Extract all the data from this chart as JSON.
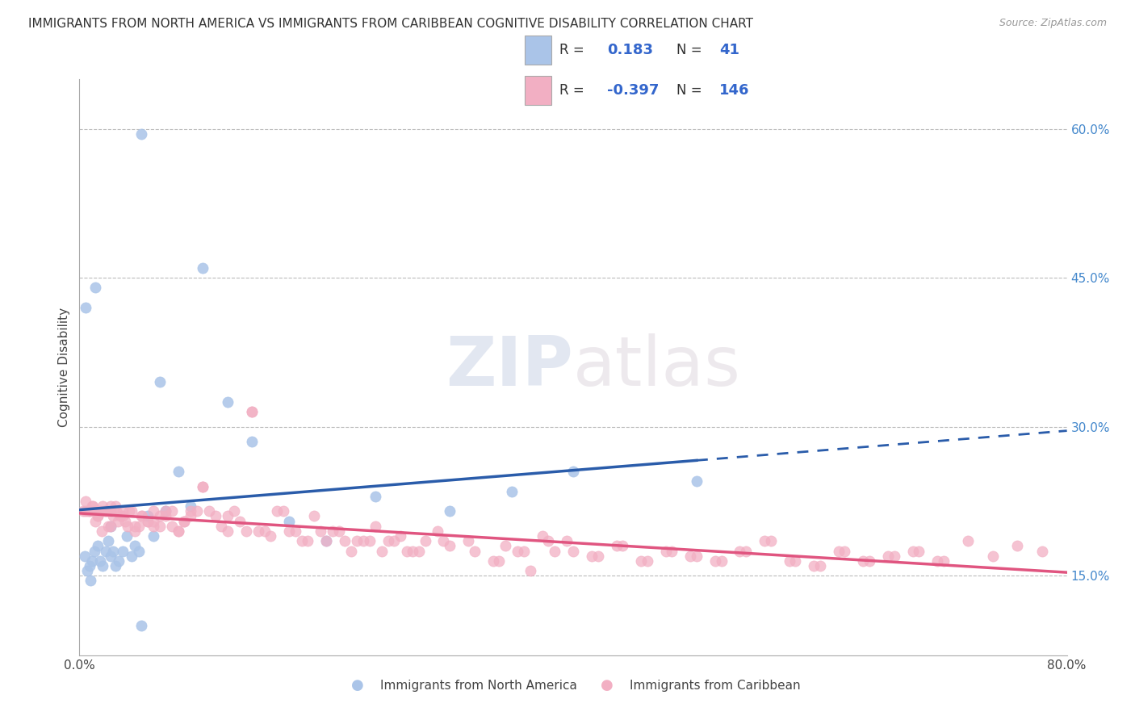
{
  "title": "IMMIGRANTS FROM NORTH AMERICA VS IMMIGRANTS FROM CARIBBEAN COGNITIVE DISABILITY CORRELATION CHART",
  "source": "Source: ZipAtlas.com",
  "ylabel": "Cognitive Disability",
  "legend_label1": "Immigrants from North America",
  "legend_label2": "Immigrants from Caribbean",
  "r1": 0.183,
  "n1": 41,
  "r2": -0.397,
  "n2": 146,
  "color1": "#aac4e8",
  "color2": "#f2afc3",
  "line_color1": "#2a5caa",
  "line_color2": "#e05580",
  "watermark_zip": "ZIP",
  "watermark_atlas": "atlas",
  "xlim": [
    0.0,
    0.8
  ],
  "ylim": [
    0.07,
    0.65
  ],
  "xticks": [
    0.0,
    0.1,
    0.2,
    0.3,
    0.4,
    0.5,
    0.6,
    0.7,
    0.8
  ],
  "ytick_right": [
    0.15,
    0.3,
    0.45,
    0.6
  ],
  "ytick_right_labels": [
    "15.0%",
    "30.0%",
    "45.0%",
    "60.0%"
  ],
  "series1_x": [
    0.004,
    0.006,
    0.008,
    0.01,
    0.012,
    0.015,
    0.017,
    0.019,
    0.021,
    0.023,
    0.025,
    0.027,
    0.029,
    0.032,
    0.035,
    0.038,
    0.042,
    0.045,
    0.048,
    0.05,
    0.055,
    0.06,
    0.065,
    0.07,
    0.08,
    0.09,
    0.1,
    0.12,
    0.14,
    0.17,
    0.2,
    0.24,
    0.3,
    0.35,
    0.4,
    0.5,
    0.005,
    0.009,
    0.013,
    0.025,
    0.05
  ],
  "series1_y": [
    0.17,
    0.155,
    0.16,
    0.165,
    0.175,
    0.18,
    0.165,
    0.16,
    0.175,
    0.185,
    0.17,
    0.175,
    0.16,
    0.165,
    0.175,
    0.19,
    0.17,
    0.18,
    0.175,
    0.595,
    0.21,
    0.19,
    0.345,
    0.215,
    0.255,
    0.22,
    0.46,
    0.325,
    0.285,
    0.205,
    0.185,
    0.23,
    0.215,
    0.235,
    0.255,
    0.245,
    0.42,
    0.145,
    0.44,
    0.2,
    0.1
  ],
  "series2_x": [
    0.003,
    0.005,
    0.007,
    0.009,
    0.011,
    0.013,
    0.015,
    0.017,
    0.019,
    0.021,
    0.023,
    0.025,
    0.027,
    0.029,
    0.031,
    0.033,
    0.035,
    0.037,
    0.039,
    0.042,
    0.045,
    0.048,
    0.051,
    0.055,
    0.06,
    0.065,
    0.07,
    0.075,
    0.08,
    0.085,
    0.09,
    0.1,
    0.11,
    0.12,
    0.13,
    0.14,
    0.15,
    0.16,
    0.17,
    0.18,
    0.19,
    0.2,
    0.21,
    0.22,
    0.23,
    0.24,
    0.25,
    0.26,
    0.27,
    0.28,
    0.29,
    0.3,
    0.32,
    0.34,
    0.36,
    0.38,
    0.4,
    0.42,
    0.44,
    0.46,
    0.48,
    0.5,
    0.52,
    0.54,
    0.56,
    0.58,
    0.6,
    0.62,
    0.64,
    0.66,
    0.68,
    0.7,
    0.72,
    0.74,
    0.76,
    0.78,
    0.005,
    0.01,
    0.015,
    0.02,
    0.025,
    0.03,
    0.035,
    0.04,
    0.045,
    0.05,
    0.055,
    0.06,
    0.065,
    0.07,
    0.08,
    0.09,
    0.1,
    0.12,
    0.14,
    0.135,
    0.025,
    0.022,
    0.018,
    0.012,
    0.008,
    0.06,
    0.075,
    0.085,
    0.095,
    0.105,
    0.115,
    0.125,
    0.145,
    0.155,
    0.165,
    0.175,
    0.185,
    0.195,
    0.205,
    0.215,
    0.225,
    0.235,
    0.245,
    0.255,
    0.265,
    0.275,
    0.295,
    0.315,
    0.335,
    0.345,
    0.355,
    0.365,
    0.375,
    0.385,
    0.395,
    0.415,
    0.435,
    0.455,
    0.475,
    0.495,
    0.515,
    0.535,
    0.555,
    0.575,
    0.595,
    0.615,
    0.635,
    0.655,
    0.675,
    0.695
  ],
  "series2_y": [
    0.215,
    0.225,
    0.215,
    0.215,
    0.22,
    0.205,
    0.21,
    0.215,
    0.22,
    0.215,
    0.2,
    0.215,
    0.21,
    0.22,
    0.205,
    0.21,
    0.215,
    0.205,
    0.2,
    0.215,
    0.195,
    0.2,
    0.21,
    0.205,
    0.2,
    0.21,
    0.215,
    0.2,
    0.195,
    0.205,
    0.21,
    0.24,
    0.21,
    0.195,
    0.205,
    0.315,
    0.195,
    0.215,
    0.195,
    0.185,
    0.21,
    0.185,
    0.195,
    0.175,
    0.185,
    0.2,
    0.185,
    0.19,
    0.175,
    0.185,
    0.195,
    0.18,
    0.175,
    0.165,
    0.175,
    0.185,
    0.175,
    0.17,
    0.18,
    0.165,
    0.175,
    0.17,
    0.165,
    0.175,
    0.185,
    0.165,
    0.16,
    0.175,
    0.165,
    0.17,
    0.175,
    0.165,
    0.185,
    0.17,
    0.18,
    0.175,
    0.215,
    0.22,
    0.21,
    0.215,
    0.2,
    0.215,
    0.21,
    0.215,
    0.2,
    0.21,
    0.205,
    0.215,
    0.2,
    0.21,
    0.195,
    0.215,
    0.24,
    0.21,
    0.315,
    0.195,
    0.22,
    0.215,
    0.195,
    0.215,
    0.215,
    0.205,
    0.215,
    0.205,
    0.215,
    0.215,
    0.2,
    0.215,
    0.195,
    0.19,
    0.215,
    0.195,
    0.185,
    0.195,
    0.195,
    0.185,
    0.185,
    0.185,
    0.175,
    0.185,
    0.175,
    0.175,
    0.185,
    0.185,
    0.165,
    0.18,
    0.175,
    0.155,
    0.19,
    0.175,
    0.185,
    0.17,
    0.18,
    0.165,
    0.175,
    0.17,
    0.165,
    0.175,
    0.185,
    0.165,
    0.16,
    0.175,
    0.165,
    0.17,
    0.175,
    0.165
  ]
}
